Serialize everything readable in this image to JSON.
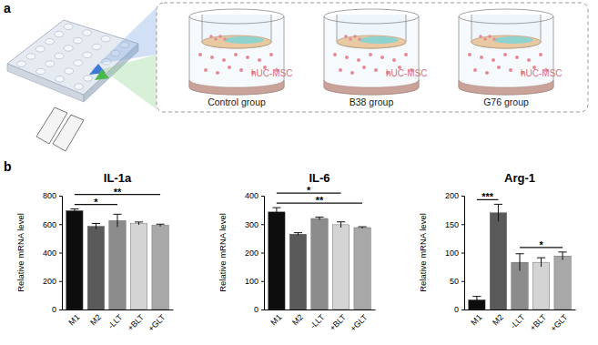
{
  "figure": {
    "panel_labels": [
      "a",
      "b"
    ]
  },
  "diagram": {
    "groups": [
      {
        "label": "Control group",
        "cells": "hUC-MSC"
      },
      {
        "label": "B38 group",
        "cells": "hUC-MSC"
      },
      {
        "label": "G76 group",
        "cells": "hUC-MSC"
      }
    ]
  },
  "chart_data": [
    {
      "type": "bar",
      "title": "IL-1a",
      "ylabel": "Relative mRNA level",
      "categories": [
        "M1",
        "M2",
        "-LLT",
        "+BLT",
        "+GLT"
      ],
      "values": [
        695,
        585,
        625,
        605,
        592
      ],
      "errors": [
        12,
        20,
        45,
        10,
        8
      ],
      "colors": [
        "#0d0d0d",
        "#5a5a5a",
        "#8c8c8c",
        "#d4d4d4",
        "#a8a8a8"
      ],
      "ylim": [
        0,
        800
      ],
      "yticks": [
        0,
        200,
        400,
        600,
        800
      ],
      "annotations": [
        {
          "text": "*",
          "from": "M1",
          "to": "-LLT"
        },
        {
          "text": "**",
          "from": "M1",
          "to": "+GLT"
        }
      ]
    },
    {
      "type": "bar",
      "title": "IL-6",
      "ylabel": "Relative mRNA level",
      "categories": [
        "M1",
        "M2",
        "-LLT",
        "+BLT",
        "+GLT"
      ],
      "values": [
        343,
        265,
        320,
        298,
        288
      ],
      "errors": [
        15,
        5,
        5,
        10,
        3
      ],
      "colors": [
        "#0d0d0d",
        "#5a5a5a",
        "#8c8c8c",
        "#d4d4d4",
        "#a8a8a8"
      ],
      "ylim": [
        0,
        400
      ],
      "yticks": [
        0,
        100,
        200,
        300,
        400
      ],
      "annotations": [
        {
          "text": "**",
          "from": "M1",
          "to": "+GLT"
        },
        {
          "text": "*",
          "from": "M1",
          "to": "+BLT"
        }
      ]
    },
    {
      "type": "bar",
      "title": "Arg-1",
      "ylabel": "Relative mRNA level",
      "categories": [
        "M1",
        "M2",
        "-LLT",
        "+BLT",
        "+GLT"
      ],
      "values": [
        17,
        170,
        83,
        83,
        94
      ],
      "errors": [
        6,
        15,
        15,
        8,
        7
      ],
      "colors": [
        "#0d0d0d",
        "#5a5a5a",
        "#8c8c8c",
        "#d4d4d4",
        "#a8a8a8"
      ],
      "ylim": [
        0,
        200
      ],
      "yticks": [
        0,
        50,
        100,
        150,
        200
      ],
      "annotations": [
        {
          "text": "***",
          "from": "M1",
          "to": "M2"
        },
        {
          "text": "*",
          "from": "-LLT",
          "to": "+GLT"
        }
      ]
    }
  ]
}
